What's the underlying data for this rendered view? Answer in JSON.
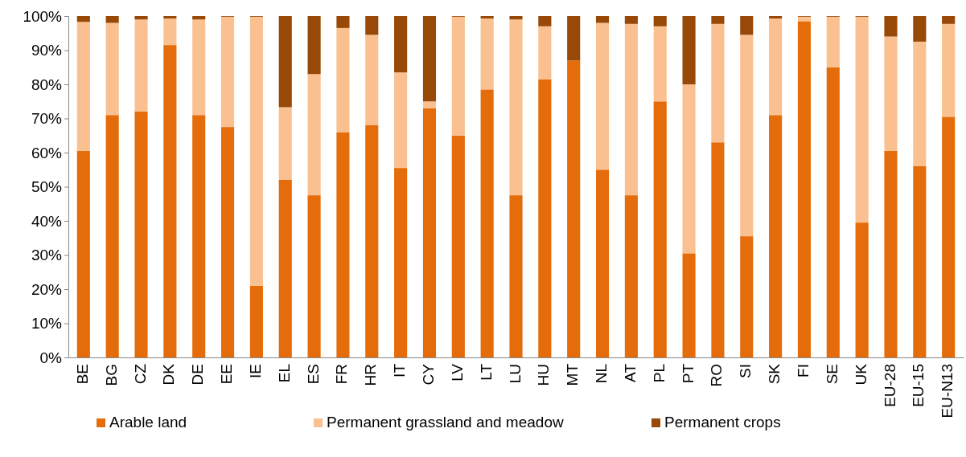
{
  "chart_data": {
    "type": "bar",
    "stacked": true,
    "legend": "bottom",
    "grid": false,
    "categories": [
      "BE",
      "BG",
      "CZ",
      "DK",
      "DE",
      "EE",
      "IE",
      "EL",
      "ES",
      "FR",
      "HR",
      "IT",
      "CY",
      "LV",
      "LT",
      "LU",
      "HU",
      "MT",
      "NL",
      "AT",
      "PL",
      "PT",
      "RO",
      "SI",
      "SK",
      "FI",
      "SE",
      "UK",
      "EU-28",
      "EU-15",
      "EU-N13"
    ],
    "ylim": [
      0,
      100
    ],
    "yticks": [
      {
        "value": 0,
        "label": "0%"
      },
      {
        "value": 10,
        "label": "10%"
      },
      {
        "value": 20,
        "label": "20%"
      },
      {
        "value": 30,
        "label": "30%"
      },
      {
        "value": 40,
        "label": "40%"
      },
      {
        "value": 50,
        "label": "50%"
      },
      {
        "value": 60,
        "label": "60%"
      },
      {
        "value": 70,
        "label": "70%"
      },
      {
        "value": 80,
        "label": "80%"
      },
      {
        "value": 90,
        "label": "90%"
      },
      {
        "value": 100,
        "label": "100%"
      }
    ],
    "series": [
      {
        "name": "Arable land",
        "color": "#e46c0a",
        "values": [
          60.5,
          71,
          72,
          91.5,
          71,
          67.5,
          21,
          52,
          47.5,
          66,
          68,
          55.5,
          73,
          65,
          78.5,
          47.5,
          81.5,
          87,
          55,
          47.5,
          75,
          30.5,
          63,
          35.5,
          71,
          98.5,
          85,
          39.5,
          60.5,
          56,
          70.5
        ]
      },
      {
        "name": "Permanent grassland and meadow",
        "color": "#fac090",
        "values": [
          37.8,
          27,
          27,
          7.8,
          28,
          32.3,
          78.8,
          21.3,
          35.5,
          30.5,
          26.5,
          28,
          2,
          34.8,
          20.8,
          51.5,
          15.5,
          0,
          43,
          50.2,
          22,
          49.5,
          34.7,
          59,
          28.3,
          1.3,
          14.8,
          60.3,
          33.5,
          36.5,
          27.2
        ]
      },
      {
        "name": "Permanent crops",
        "color": "#984807",
        "values": [
          1.7,
          2,
          1,
          0.7,
          1,
          0.2,
          0.2,
          26.7,
          17,
          3.5,
          5.5,
          16.5,
          25,
          0.2,
          0.7,
          1,
          3,
          13,
          2,
          2.3,
          3,
          20,
          2.3,
          5.5,
          0.7,
          0.2,
          0.2,
          0.2,
          6,
          7.5,
          2.3
        ]
      }
    ]
  }
}
